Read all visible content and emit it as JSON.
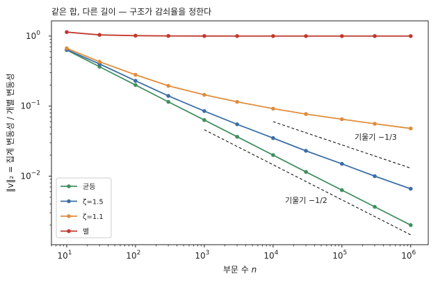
{
  "chart_data": {
    "type": "line",
    "title": "같은 합, 다른 길이 — 구조가 감쇠율을 정한다",
    "xlabel_text": "부문 수 ",
    "xlabel_var": "n",
    "ylabel": "‖v‖₂ = 집계 변동성 / 개별 변동성",
    "x_scale": "log",
    "y_scale": "log",
    "xlim": [
      6,
      1800000
    ],
    "ylim": [
      0.00105,
      1.65
    ],
    "x_ticks": [
      {
        "value": 10,
        "base": "10",
        "exp": "1"
      },
      {
        "value": 100,
        "base": "10",
        "exp": "2"
      },
      {
        "value": 1000,
        "base": "10",
        "exp": "3"
      },
      {
        "value": 10000,
        "base": "10",
        "exp": "4"
      },
      {
        "value": 100000,
        "base": "10",
        "exp": "5"
      },
      {
        "value": 1000000,
        "base": "10",
        "exp": "6"
      }
    ],
    "y_ticks": [
      {
        "value": 0.01,
        "base": "10",
        "exp": "−2"
      },
      {
        "value": 0.1,
        "base": "10",
        "exp": "−1"
      },
      {
        "value": 1,
        "base": "10",
        "exp": "0"
      }
    ],
    "x": [
      10,
      30,
      100,
      300,
      1000,
      3000,
      10000,
      30000,
      100000,
      300000,
      1000000
    ],
    "series": [
      {
        "name": "균등",
        "color": "#3f8f5f",
        "values": [
          0.632,
          0.365,
          0.2,
          0.115,
          0.0632,
          0.0365,
          0.02,
          0.0115,
          0.00632,
          0.00365,
          0.002
        ]
      },
      {
        "name": "ζ=1.5",
        "color": "#3a6ea5",
        "values": [
          0.64,
          0.4,
          0.23,
          0.14,
          0.085,
          0.055,
          0.035,
          0.023,
          0.015,
          0.01,
          0.0066
        ]
      },
      {
        "name": "ζ=1.1",
        "color": "#e08c3a",
        "values": [
          0.67,
          0.43,
          0.28,
          0.195,
          0.145,
          0.115,
          0.092,
          0.077,
          0.065,
          0.056,
          0.048
        ]
      },
      {
        "name": "별",
        "color": "#c0392b",
        "values": [
          1.14,
          1.04,
          1.015,
          1.005,
          1.002,
          1.001,
          1.0,
          1.0,
          1.0,
          1.0,
          1.0
        ]
      }
    ],
    "reference_lines": [
      {
        "label": "기울기 −1/3",
        "x": [
          10000,
          1000000
        ],
        "y": [
          0.06,
          0.013
        ]
      },
      {
        "label": "기울기 −1/2",
        "x": [
          1000,
          1000000
        ],
        "y": [
          0.046,
          0.00145
        ]
      }
    ],
    "legend_position": "lower-left",
    "grid": false
  }
}
